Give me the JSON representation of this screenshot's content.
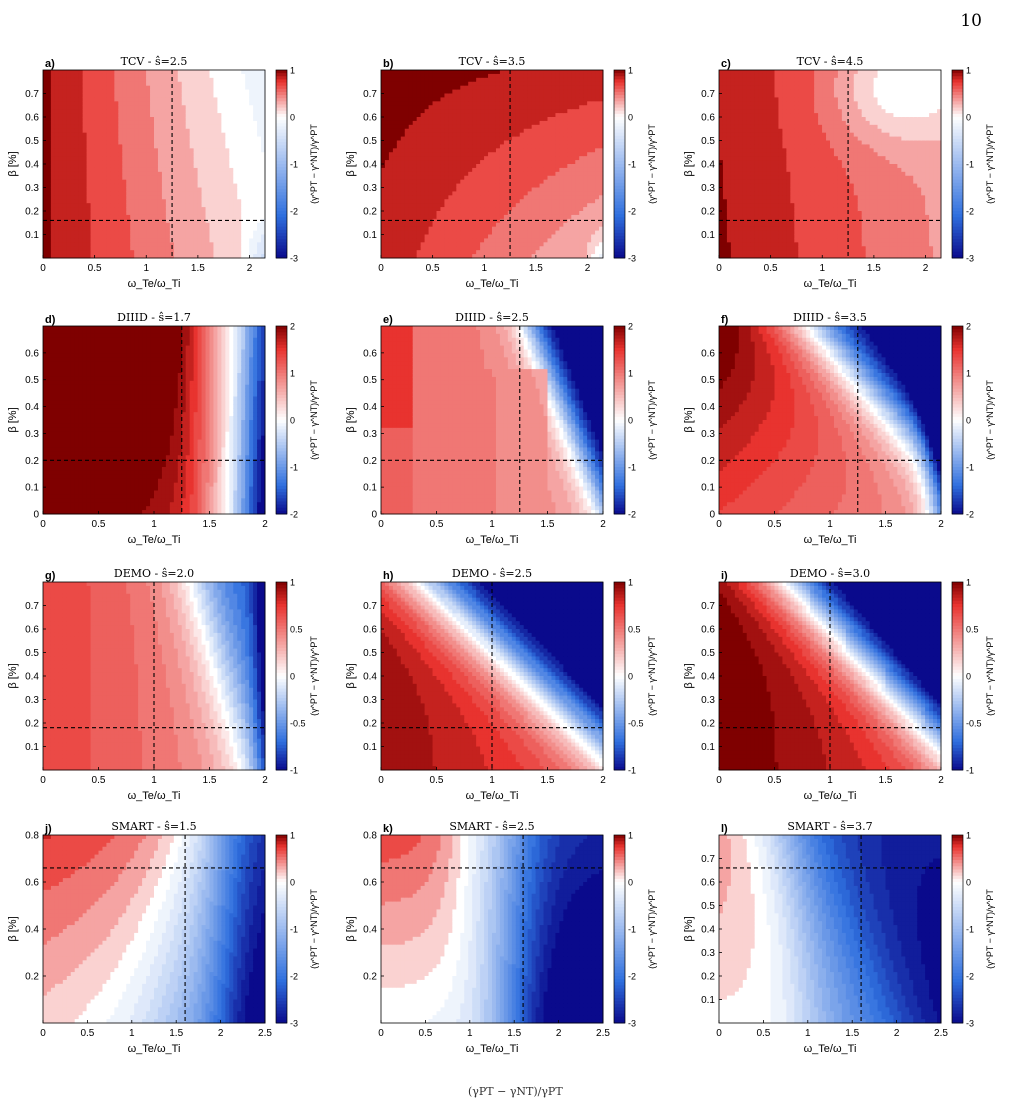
{
  "page_number": "10",
  "caption_fragment": "(γPT − γNT)/γPT",
  "panels_common": {
    "xlabel": "ω_Te/ω_Ti",
    "ylabel": "β [%]",
    "colorbar_label": "(γ^PT − γ^NT)/γ^PT",
    "colors": {
      "max_red": "#7f0000",
      "red": "#e8332f",
      "white": "#ffffff",
      "blue": "#2f6fde",
      "max_blue": "#0a0a8c"
    }
  },
  "chart_data": [
    {
      "id": "a",
      "type": "heatmap",
      "title": "TCV - ŝ=2.5",
      "x_range": [
        0,
        2.15
      ],
      "y_range": [
        0,
        0.8
      ],
      "xticks": [
        0,
        0.5,
        1,
        1.5,
        2
      ],
      "yticks": [
        0.1,
        0.2,
        0.3,
        0.4,
        0.5,
        0.6,
        0.7
      ],
      "color_range": [
        -3,
        1
      ],
      "colorbar_ticks": [
        1,
        0,
        -1,
        -2,
        -3
      ],
      "ref_x": 1.25,
      "ref_y": 0.16
    },
    {
      "id": "b",
      "type": "heatmap",
      "title": "TCV - ŝ=3.5",
      "x_range": [
        0,
        2.15
      ],
      "y_range": [
        0,
        0.8
      ],
      "xticks": [
        0,
        0.5,
        1,
        1.5,
        2
      ],
      "yticks": [
        0.1,
        0.2,
        0.3,
        0.4,
        0.5,
        0.6,
        0.7
      ],
      "color_range": [
        -3,
        1
      ],
      "colorbar_ticks": [
        1,
        0,
        -1,
        -2,
        -3
      ],
      "ref_x": 1.25,
      "ref_y": 0.16
    },
    {
      "id": "c",
      "type": "heatmap",
      "title": "TCV - ŝ=4.5",
      "x_range": [
        0,
        2.15
      ],
      "y_range": [
        0,
        0.8
      ],
      "xticks": [
        0,
        0.5,
        1,
        1.5,
        2
      ],
      "yticks": [
        0.1,
        0.2,
        0.3,
        0.4,
        0.5,
        0.6,
        0.7
      ],
      "color_range": [
        -3,
        1
      ],
      "colorbar_ticks": [
        1,
        0,
        -1,
        -2,
        -3
      ],
      "ref_x": 1.25,
      "ref_y": 0.16
    },
    {
      "id": "d",
      "type": "heatmap",
      "title": "DIIID - ŝ=1.7",
      "x_range": [
        0,
        2
      ],
      "y_range": [
        0,
        0.7
      ],
      "xticks": [
        0,
        0.5,
        1,
        1.5,
        2
      ],
      "yticks": [
        0,
        0.1,
        0.2,
        0.3,
        0.4,
        0.5,
        0.6
      ],
      "color_range": [
        -2,
        2
      ],
      "colorbar_ticks": [
        2,
        1,
        0,
        -1,
        -2
      ],
      "ref_x": 1.25,
      "ref_y": 0.2
    },
    {
      "id": "e",
      "type": "heatmap",
      "title": "DIIID - ŝ=2.5",
      "x_range": [
        0,
        2
      ],
      "y_range": [
        0,
        0.7
      ],
      "xticks": [
        0,
        0.5,
        1,
        1.5,
        2
      ],
      "yticks": [
        0,
        0.1,
        0.2,
        0.3,
        0.4,
        0.5,
        0.6
      ],
      "color_range": [
        -2,
        2
      ],
      "colorbar_ticks": [
        2,
        1,
        0,
        -1,
        -2
      ],
      "ref_x": 1.25,
      "ref_y": 0.2
    },
    {
      "id": "f",
      "type": "heatmap",
      "title": "DIIID - ŝ=3.5",
      "x_range": [
        0,
        2
      ],
      "y_range": [
        0,
        0.7
      ],
      "xticks": [
        0,
        0.5,
        1,
        1.5,
        2
      ],
      "yticks": [
        0,
        0.1,
        0.2,
        0.3,
        0.4,
        0.5,
        0.6
      ],
      "color_range": [
        -2,
        2
      ],
      "colorbar_ticks": [
        2,
        1,
        0,
        -1,
        -2
      ],
      "ref_x": 1.25,
      "ref_y": 0.2
    },
    {
      "id": "g",
      "type": "heatmap",
      "title": "DEMO - ŝ=2.0",
      "x_range": [
        0,
        2
      ],
      "y_range": [
        0,
        0.8
      ],
      "xticks": [
        0,
        0.5,
        1,
        1.5,
        2
      ],
      "yticks": [
        0.1,
        0.2,
        0.3,
        0.4,
        0.5,
        0.6,
        0.7
      ],
      "color_range": [
        -1,
        1
      ],
      "colorbar_ticks": [
        1,
        0.5,
        0,
        -0.5,
        -1
      ],
      "ref_x": 1.0,
      "ref_y": 0.18
    },
    {
      "id": "h",
      "type": "heatmap",
      "title": "DEMO - ŝ=2.5",
      "x_range": [
        0,
        2
      ],
      "y_range": [
        0,
        0.8
      ],
      "xticks": [
        0,
        0.5,
        1,
        1.5,
        2
      ],
      "yticks": [
        0.1,
        0.2,
        0.3,
        0.4,
        0.5,
        0.6,
        0.7
      ],
      "color_range": [
        -1,
        1
      ],
      "colorbar_ticks": [
        1,
        0.5,
        0,
        -0.5,
        -1
      ],
      "ref_x": 1.0,
      "ref_y": 0.18
    },
    {
      "id": "i",
      "type": "heatmap",
      "title": "DEMO - ŝ=3.0",
      "x_range": [
        0,
        2
      ],
      "y_range": [
        0,
        0.8
      ],
      "xticks": [
        0,
        0.5,
        1,
        1.5,
        2
      ],
      "yticks": [
        0.1,
        0.2,
        0.3,
        0.4,
        0.5,
        0.6,
        0.7
      ],
      "color_range": [
        -1,
        1
      ],
      "colorbar_ticks": [
        1,
        0.5,
        0,
        -0.5,
        -1
      ],
      "ref_x": 1.0,
      "ref_y": 0.18
    },
    {
      "id": "j",
      "type": "heatmap",
      "title": "SMART - ŝ=1.5",
      "x_range": [
        0,
        2.5
      ],
      "y_range": [
        0,
        0.8
      ],
      "xticks": [
        0,
        0.5,
        1,
        1.5,
        2,
        2.5
      ],
      "yticks": [
        0.2,
        0.4,
        0.6,
        0.8
      ],
      "color_range": [
        -3,
        1
      ],
      "colorbar_ticks": [
        1,
        0,
        -1,
        -2,
        -3
      ],
      "ref_x": 1.6,
      "ref_y": 0.66
    },
    {
      "id": "k",
      "type": "heatmap",
      "title": "SMART - ŝ=2.5",
      "x_range": [
        0,
        2.5
      ],
      "y_range": [
        0,
        0.8
      ],
      "xticks": [
        0,
        0.5,
        1,
        1.5,
        2,
        2.5
      ],
      "yticks": [
        0.2,
        0.4,
        0.6,
        0.8
      ],
      "color_range": [
        -3,
        1
      ],
      "colorbar_ticks": [
        1,
        0,
        -1,
        -2,
        -3
      ],
      "ref_x": 1.6,
      "ref_y": 0.66
    },
    {
      "id": "l",
      "type": "heatmap",
      "title": "SMART - ŝ=3.7",
      "x_range": [
        0,
        2.5
      ],
      "y_range": [
        0,
        0.8
      ],
      "xticks": [
        0,
        0.5,
        1,
        1.5,
        2,
        2.5
      ],
      "yticks": [
        0.1,
        0.2,
        0.3,
        0.4,
        0.5,
        0.6,
        0.7
      ],
      "color_range": [
        -3,
        1
      ],
      "colorbar_ticks": [
        1,
        0,
        -1,
        -2,
        -3
      ],
      "ref_x": 1.6,
      "ref_y": 0.66
    }
  ]
}
